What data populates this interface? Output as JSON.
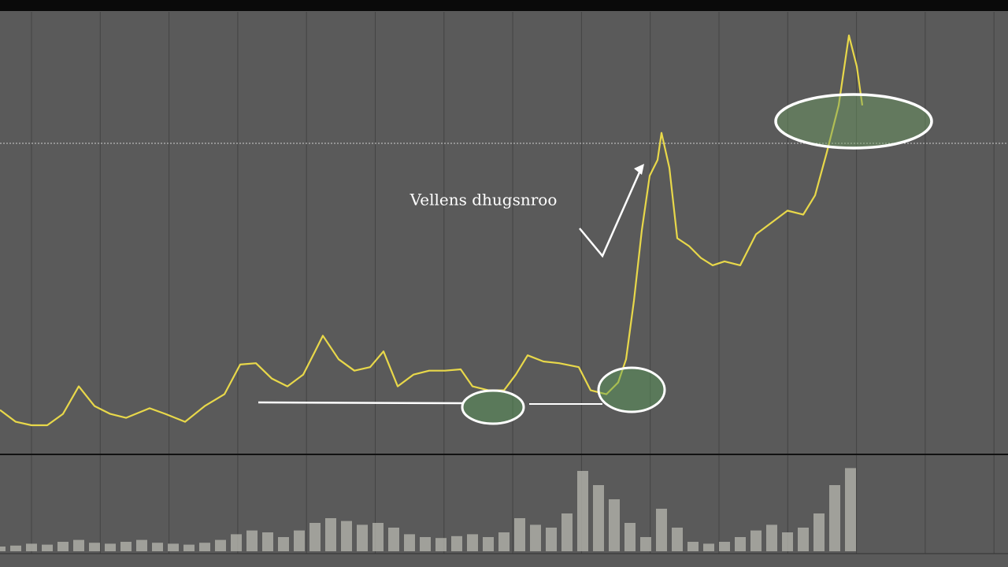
{
  "chart_data": [
    {
      "type": "line",
      "annotation": "Vellens dhugsnroo",
      "color": "#e8d84a",
      "xlim": [
        0,
        1280
      ],
      "ylim": [
        0,
        100
      ],
      "x": [
        0,
        20,
        40,
        60,
        80,
        100,
        120,
        140,
        160,
        190,
        210,
        235,
        260,
        285,
        305,
        325,
        345,
        365,
        385,
        400,
        410,
        430,
        450,
        470,
        487,
        505,
        525,
        545,
        565,
        585,
        600,
        620,
        640,
        655,
        670,
        690,
        710,
        735,
        750,
        770,
        785,
        795,
        805,
        815,
        825,
        835,
        840,
        850,
        860,
        875,
        890,
        905,
        920,
        940,
        960,
        980,
        1000,
        1020,
        1035,
        1050,
        1065,
        1078,
        1088,
        1095
      ],
      "values": [
        9.8,
        7.1,
        6.3,
        6.3,
        8.9,
        15.2,
        10.7,
        8.9,
        8.0,
        10.2,
        8.9,
        7.1,
        10.7,
        13.4,
        20.2,
        20.5,
        17.0,
        15.2,
        17.9,
        23.2,
        26.8,
        21.4,
        18.8,
        19.6,
        23.2,
        15.2,
        17.9,
        18.8,
        18.8,
        19.1,
        15.2,
        14.3,
        14.3,
        17.9,
        22.3,
        20.9,
        20.5,
        19.6,
        14.3,
        13.4,
        16.1,
        21.4,
        34.8,
        50.9,
        63.4,
        67.0,
        73.2,
        65.2,
        49.1,
        47.3,
        44.6,
        42.9,
        43.8,
        42.9,
        50.0,
        52.7,
        55.4,
        54.5,
        58.9,
        68.8,
        79.5,
        95.5,
        88.4,
        79.5
      ]
    },
    {
      "type": "bar",
      "color": "#b8b8b0",
      "xlim": [
        0,
        1280
      ],
      "ylim": [
        0,
        100
      ],
      "x": [
        0,
        20,
        40,
        60,
        80,
        100,
        120,
        140,
        160,
        180,
        200,
        220,
        240,
        260,
        280,
        300,
        320,
        340,
        360,
        380,
        400,
        420,
        440,
        460,
        480,
        500,
        520,
        540,
        560,
        580,
        600,
        620,
        640,
        660,
        680,
        700,
        720,
        740,
        760,
        780,
        800,
        820,
        840,
        860,
        880,
        900,
        920,
        940,
        960,
        980,
        1000,
        1020,
        1040,
        1060,
        1080
      ],
      "values": [
        5,
        6,
        8,
        7,
        10,
        12,
        9,
        8,
        10,
        12,
        9,
        8,
        7,
        9,
        12,
        18,
        22,
        20,
        15,
        22,
        30,
        35,
        32,
        28,
        30,
        25,
        18,
        15,
        14,
        16,
        18,
        15,
        20,
        35,
        28,
        25,
        40,
        85,
        70,
        55,
        30,
        15,
        45,
        25,
        10,
        8,
        10,
        15,
        22,
        28,
        20,
        25,
        40,
        70,
        88
      ]
    }
  ]
}
